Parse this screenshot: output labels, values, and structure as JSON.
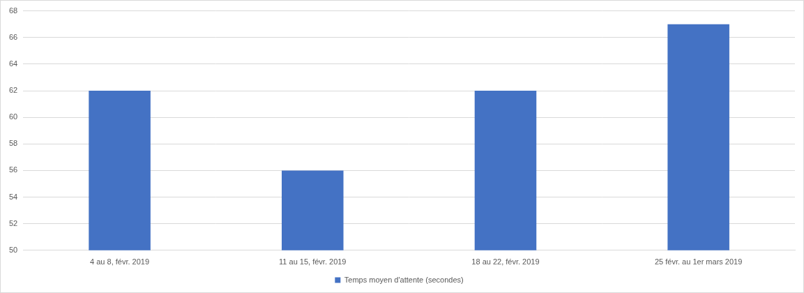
{
  "chart_data": {
    "type": "bar",
    "categories": [
      "4 au 8, févr. 2019",
      "11 au 15, févr. 2019",
      "18 au 22, févr. 2019",
      "25 févr. au 1er mars 2019"
    ],
    "series": [
      {
        "name": "Temps moyen d'attente (secondes)",
        "color": "#4472c4",
        "values": [
          62,
          56,
          62,
          67
        ]
      }
    ],
    "ylim": [
      50,
      68
    ],
    "yticks": [
      50,
      52,
      54,
      56,
      58,
      60,
      62,
      64,
      66,
      68
    ],
    "grid": true,
    "legend": "bottom"
  }
}
